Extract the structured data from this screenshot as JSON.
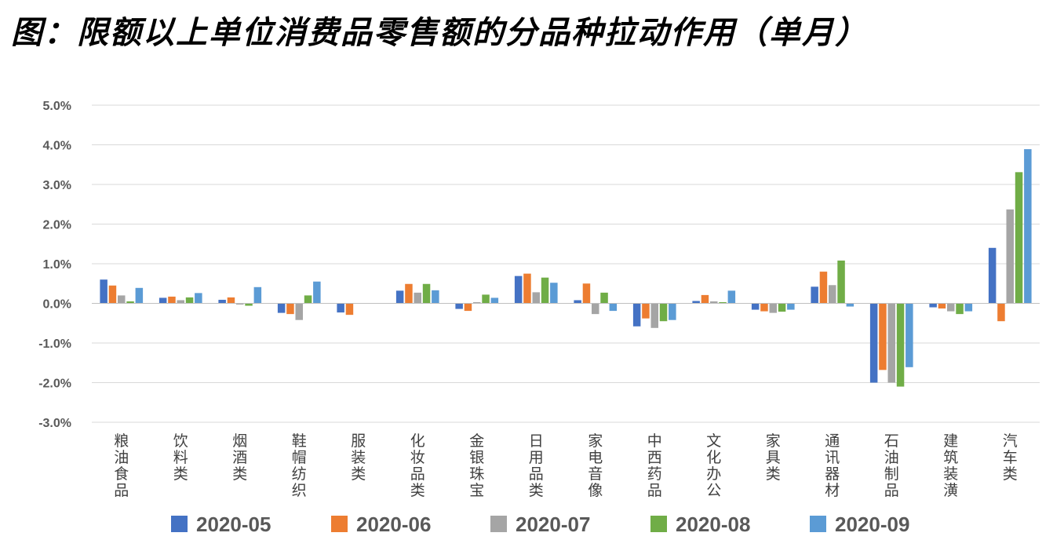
{
  "chart_data": {
    "type": "bar",
    "title": "图：限额以上单位消费品零售额的分品种拉动作用（单月）",
    "categories": [
      "粮油食品",
      "饮料类",
      "烟酒类",
      "鞋帽纺织",
      "服装类",
      "化妆品类",
      "金银珠宝",
      "日用品类",
      "家电音像",
      "中西药品",
      "文化办公",
      "家具类",
      "通讯器材",
      "石油制品",
      "建筑装潢",
      "汽车类"
    ],
    "series": [
      {
        "name": "2020-05",
        "color": "#4472C4",
        "values": [
          0.6,
          0.14,
          0.09,
          -0.24,
          -0.23,
          0.32,
          -0.14,
          0.69,
          0.08,
          -0.58,
          0.06,
          -0.16,
          0.42,
          -2.0,
          -0.1,
          1.4
        ]
      },
      {
        "name": "2020-06",
        "color": "#ED7D31",
        "values": [
          0.45,
          0.17,
          0.15,
          -0.27,
          -0.29,
          0.49,
          -0.19,
          0.75,
          0.5,
          -0.38,
          0.21,
          -0.2,
          0.8,
          -1.68,
          -0.13,
          -0.45
        ]
      },
      {
        "name": "2020-07",
        "color": "#A5A5A5",
        "values": [
          0.2,
          0.08,
          -0.03,
          -0.42,
          0.0,
          0.27,
          0.03,
          0.28,
          -0.27,
          -0.62,
          0.05,
          -0.24,
          0.46,
          -2.0,
          -0.2,
          2.37
        ]
      },
      {
        "name": "2020-08",
        "color": "#70AD47",
        "values": [
          0.05,
          0.15,
          -0.06,
          0.2,
          0.0,
          0.49,
          0.22,
          0.65,
          0.27,
          -0.45,
          0.03,
          -0.21,
          1.08,
          -2.1,
          -0.27,
          3.31
        ]
      },
      {
        "name": "2020-09",
        "color": "#5B9BD5",
        "values": [
          0.39,
          0.26,
          0.41,
          0.55,
          0.0,
          0.33,
          0.14,
          0.52,
          -0.19,
          -0.42,
          0.32,
          -0.16,
          -0.08,
          -1.61,
          -0.2,
          3.89
        ]
      }
    ],
    "yticks": [
      "5.0%",
      "4.0%",
      "3.0%",
      "2.0%",
      "1.0%",
      "0.0%",
      "-1.0%",
      "-2.0%",
      "-3.0%"
    ],
    "ylim": [
      -3.0,
      5.0
    ],
    "grid": true,
    "legend": "bottom"
  }
}
